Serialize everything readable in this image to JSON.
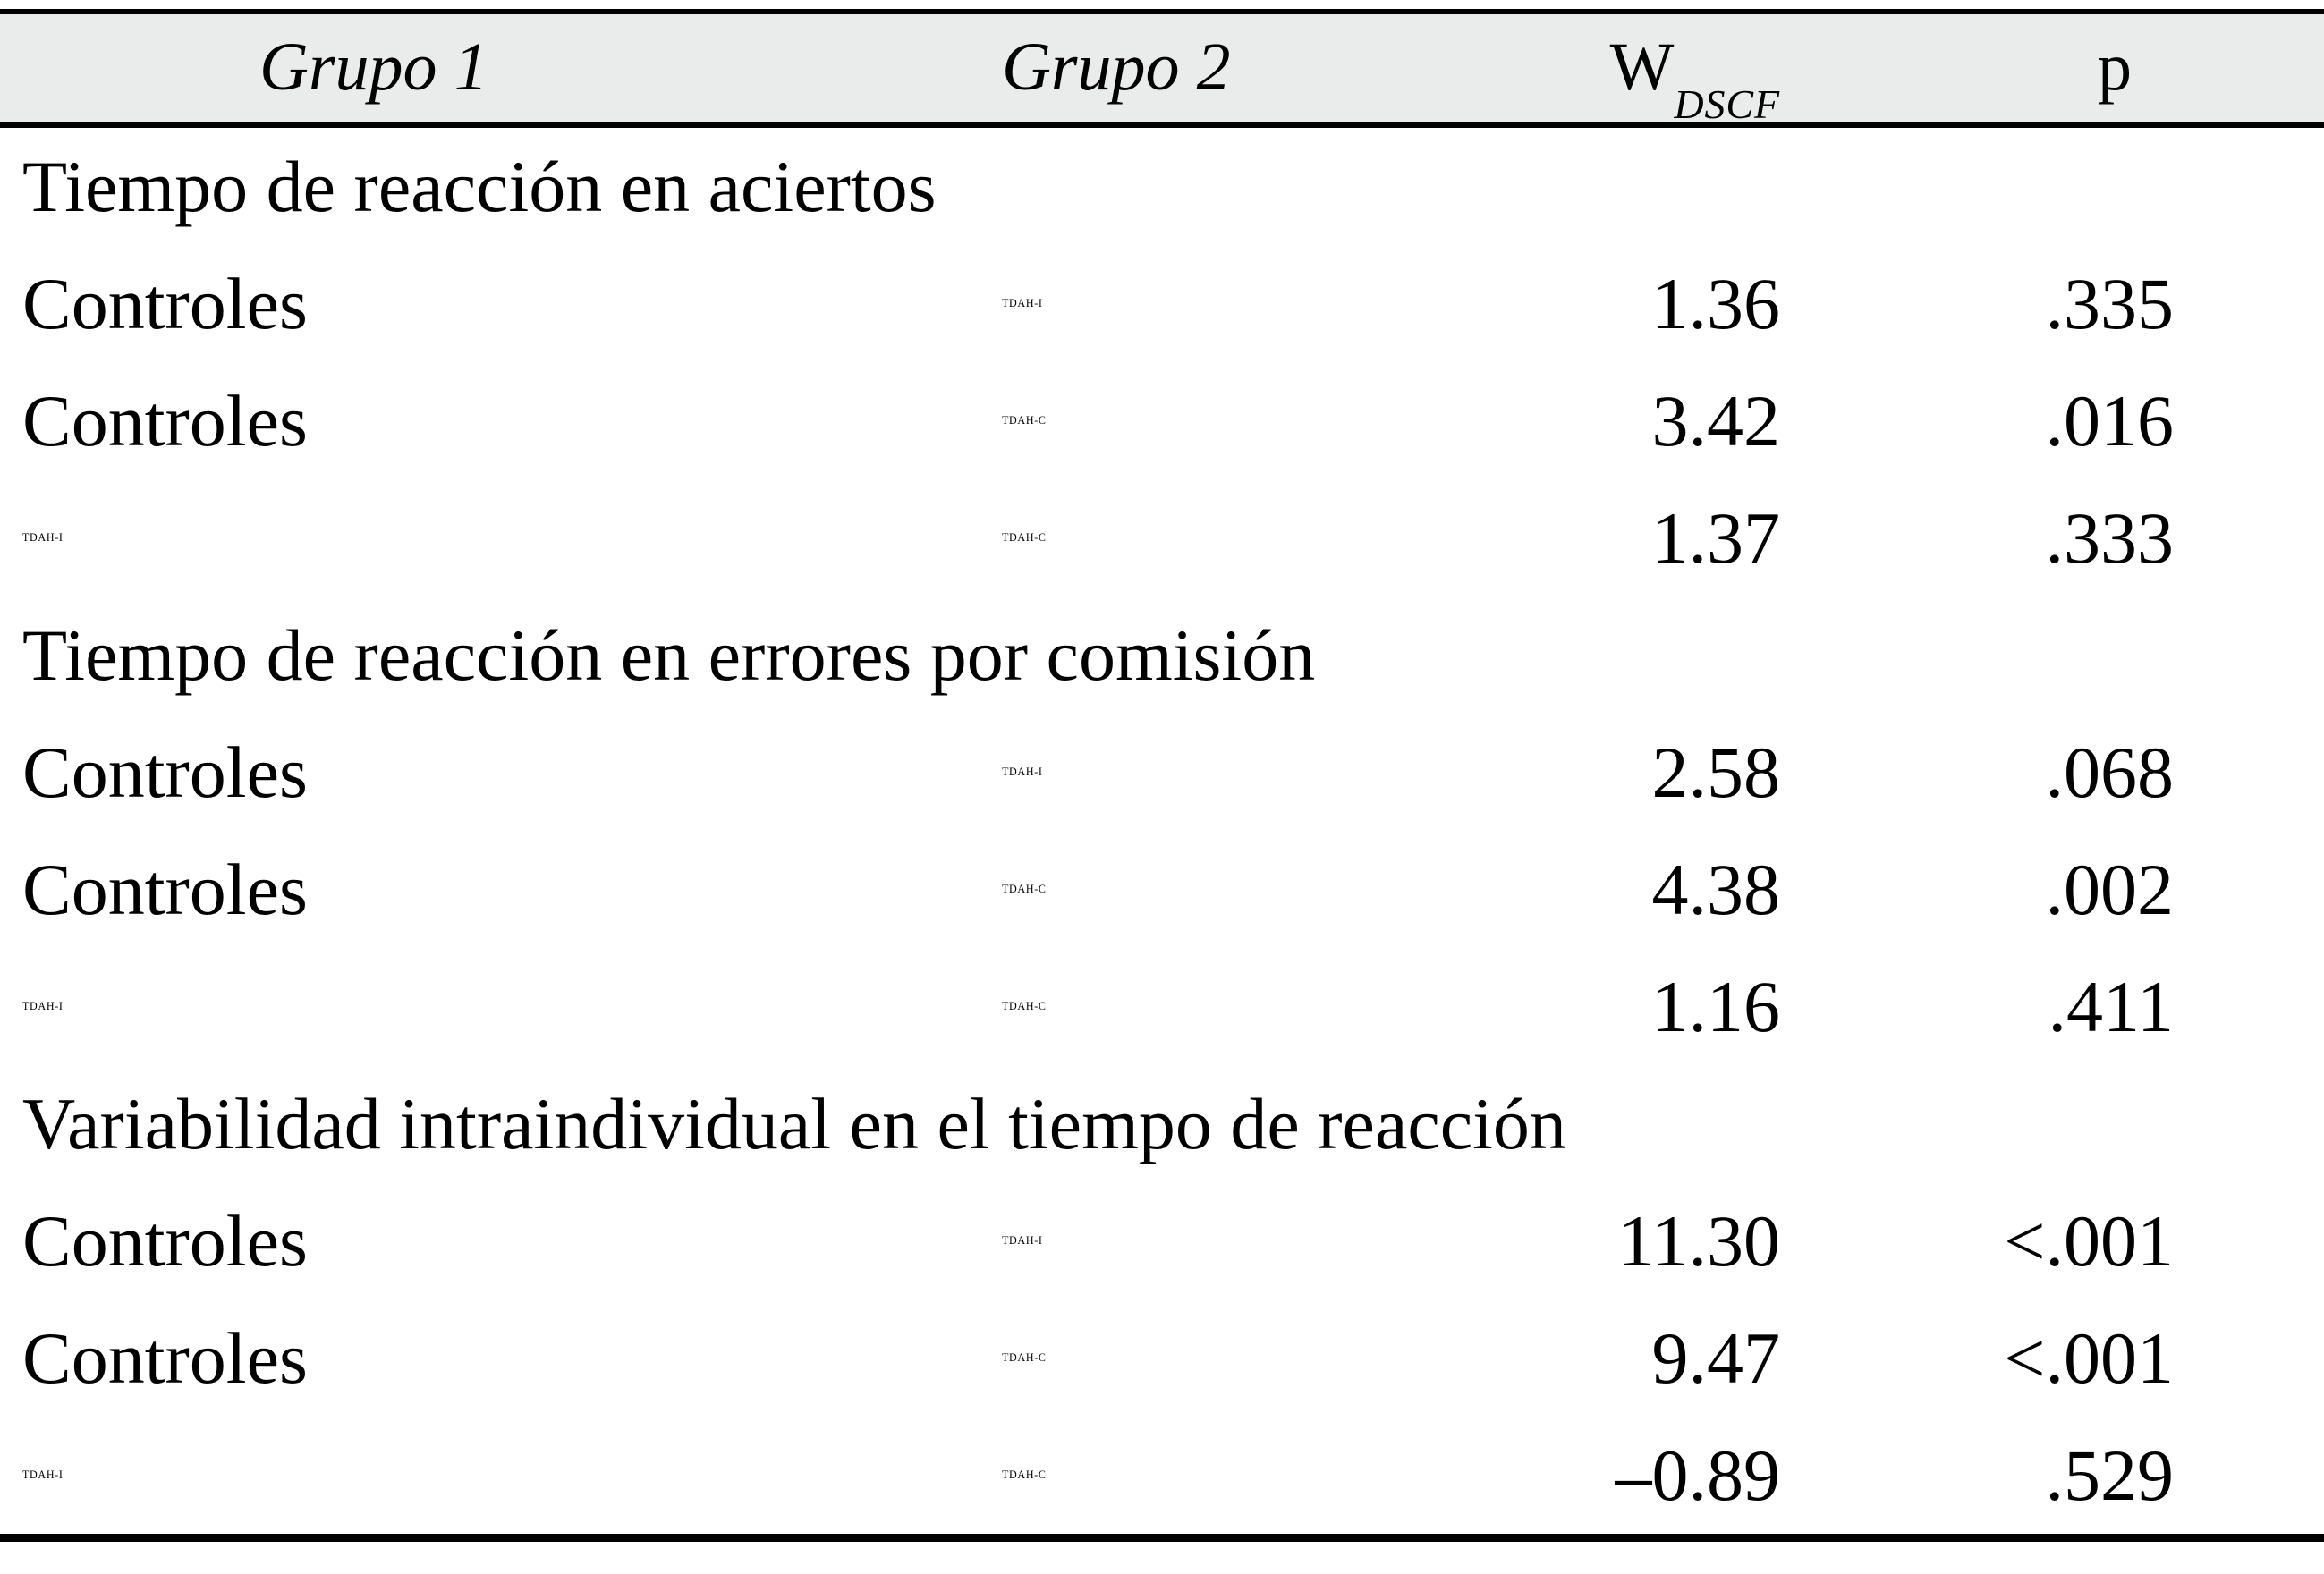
{
  "table": {
    "header": {
      "grupo1": "Grupo 1",
      "grupo2": "Grupo 2",
      "w_base": "W",
      "w_sub": "DSCF",
      "p": "p"
    },
    "sections": [
      {
        "title": "Tiempo de reacción en aciertos",
        "rows": [
          {
            "grupo1": "Controles",
            "grupo2": "TDAH-I",
            "w_dscf": "1.36",
            "p": ".335"
          },
          {
            "grupo1": "Controles",
            "grupo2": "TDAH-C",
            "w_dscf": "3.42",
            "p": ".016"
          },
          {
            "grupo1": "TDAH-I",
            "grupo2": "TDAH-C",
            "w_dscf": "1.37",
            "p": ".333"
          }
        ]
      },
      {
        "title": "Tiempo de reacción en errores por comisión",
        "rows": [
          {
            "grupo1": "Controles",
            "grupo2": "TDAH-I",
            "w_dscf": "2.58",
            "p": ".068"
          },
          {
            "grupo1": "Controles",
            "grupo2": "TDAH-C",
            "w_dscf": "4.38",
            "p": ".002"
          },
          {
            "grupo1": "TDAH-I",
            "grupo2": "TDAH-C",
            "w_dscf": "1.16",
            "p": ".411"
          }
        ]
      },
      {
        "title": "Variabilidad intraindividual en el tiempo de reacción",
        "rows": [
          {
            "grupo1": "Controles",
            "grupo2": "TDAH-I",
            "w_dscf": "11.30",
            "p": "<.001"
          },
          {
            "grupo1": "Controles",
            "grupo2": "TDAH-C",
            "w_dscf": "9.47",
            "p": "<.001"
          },
          {
            "grupo1": "TDAH-I",
            "grupo2": "TDAH-C",
            "w_dscf": "–0.89",
            "p": ".529"
          }
        ]
      }
    ],
    "colors": {
      "header_bg": "#eaebeb",
      "rule": "#000000",
      "text": "#000000",
      "page_bg": "#ffffff"
    }
  }
}
